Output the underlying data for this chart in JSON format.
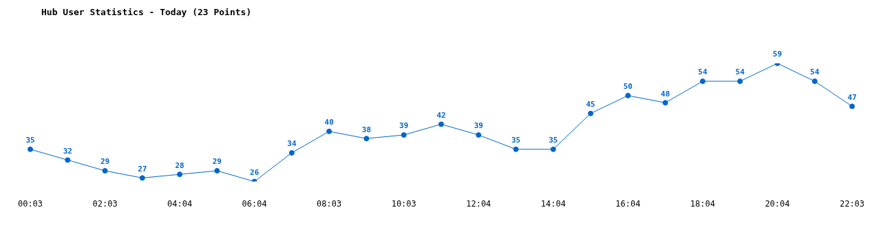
{
  "chart_data": {
    "type": "line",
    "title": "Hub User Statistics - Today (23 Points)",
    "categories": [
      "00:03",
      null,
      "02:03",
      null,
      "04:04",
      null,
      "06:04",
      null,
      "08:03",
      null,
      "10:03",
      null,
      "12:04",
      null,
      "14:04",
      null,
      "16:04",
      null,
      "18:04",
      null,
      "20:04",
      null,
      "22:03"
    ],
    "values": [
      35,
      32,
      29,
      27,
      28,
      29,
      26,
      34,
      40,
      38,
      39,
      42,
      39,
      35,
      35,
      45,
      50,
      48,
      54,
      54,
      59,
      54,
      47
    ],
    "color": "#0066cc",
    "marker": "circle",
    "data_labels": true
  }
}
